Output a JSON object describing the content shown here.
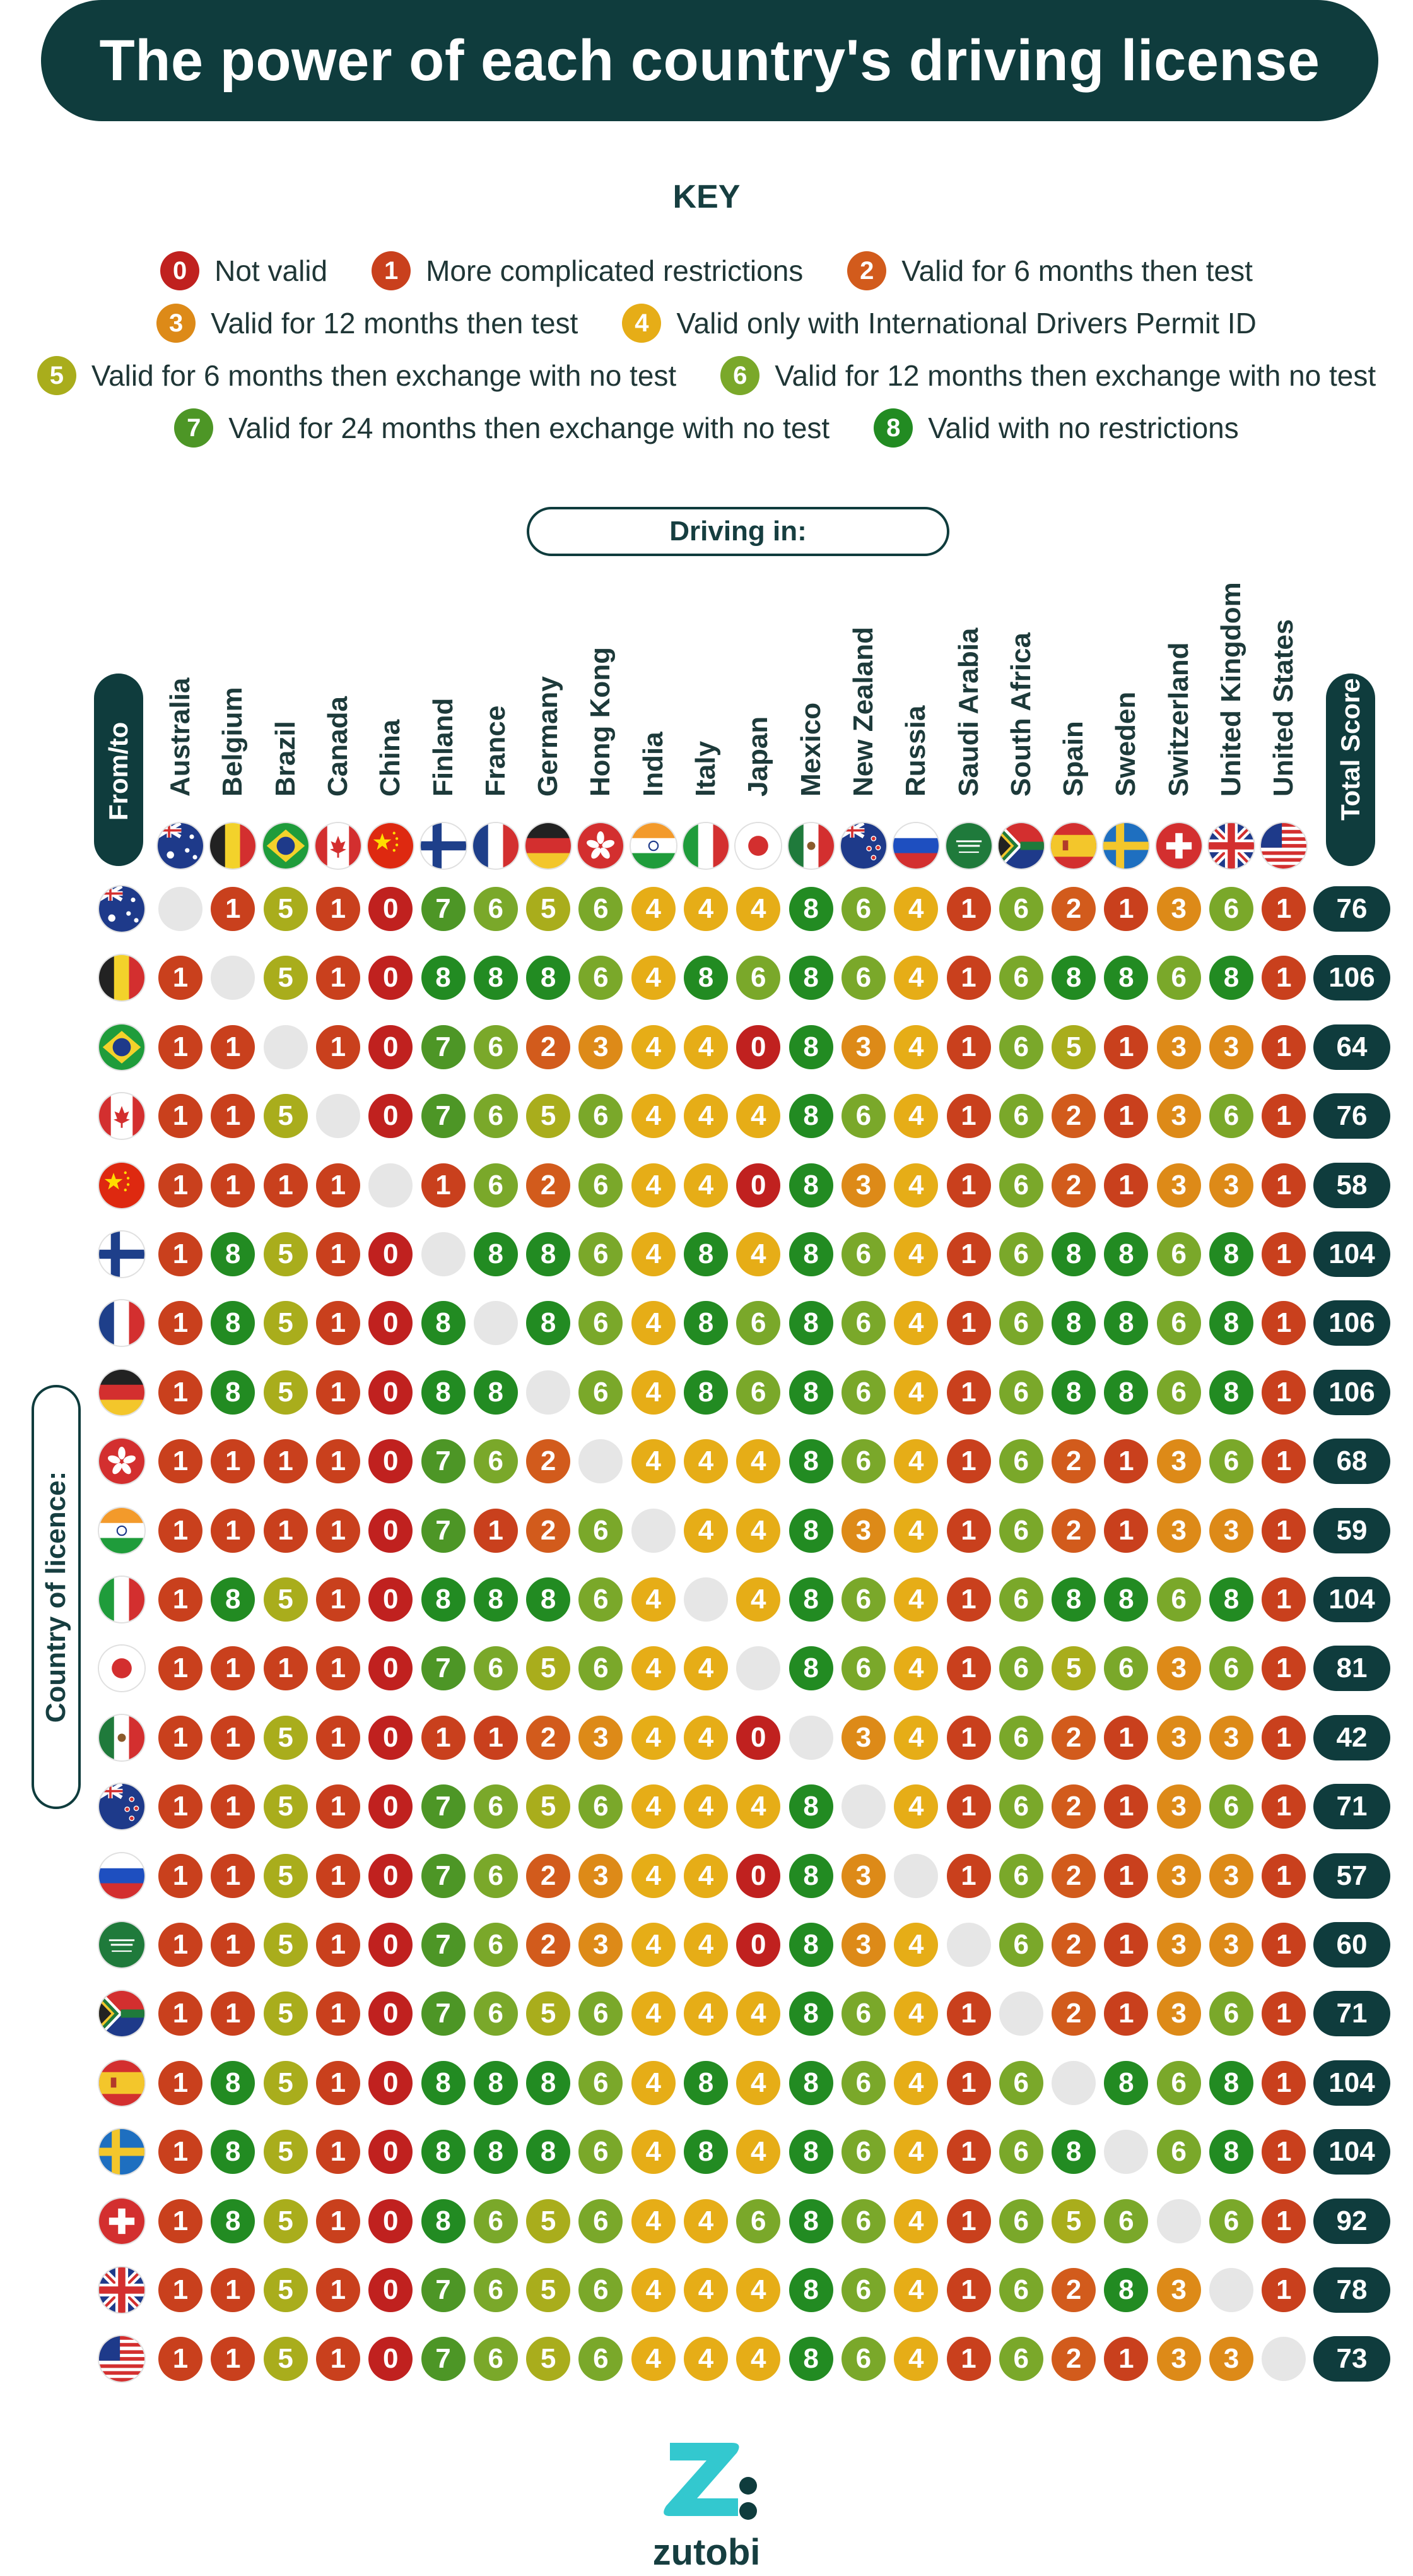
{
  "title": "The power of each country's driving license",
  "key": {
    "title": "KEY",
    "rows": [
      [
        {
          "n": "0",
          "label": "Not valid"
        },
        {
          "n": "1",
          "label": "More complicated restrictions"
        },
        {
          "n": "2",
          "label": "Valid for 6 months then test"
        }
      ],
      [
        {
          "n": "3",
          "label": "Valid for 12 months then test"
        },
        {
          "n": "4",
          "label": "Valid only with International Drivers Permit ID"
        }
      ],
      [
        {
          "n": "5",
          "label": "Valid for 6 months then exchange with no test"
        },
        {
          "n": "6",
          "label": "Valid for 12 months then exchange with no test"
        }
      ],
      [
        {
          "n": "7",
          "label": "Valid for 24 months then exchange with no test"
        },
        {
          "n": "8",
          "label": "Valid with no restrictions"
        }
      ]
    ]
  },
  "score_colors": {
    "0": "#c0211f",
    "1": "#c9401d",
    "2": "#d25b1c",
    "3": "#dd8a18",
    "4": "#e6ad17",
    "5": "#a9ad1c",
    "6": "#7aa82a",
    "7": "#4d9626",
    "8": "#228b22"
  },
  "labels": {
    "driving_in": "Driving in:",
    "from_to": "From/to",
    "total_score": "Total Score",
    "country_of_licence": "Country of licence:"
  },
  "countries": [
    "Australia",
    "Belgium",
    "Brazil",
    "Canada",
    "China",
    "Finland",
    "France",
    "Germany",
    "Hong Kong",
    "India",
    "Italy",
    "Japan",
    "Mexico",
    "New Zealand",
    "Russia",
    "Saudi Arabia",
    "South Africa",
    "Spain",
    "Sweden",
    "Switzerland",
    "United Kingdom",
    "United States"
  ],
  "flag_icons": [
    "australia-flag-icon",
    "belgium-flag-icon",
    "brazil-flag-icon",
    "canada-flag-icon",
    "china-flag-icon",
    "finland-flag-icon",
    "france-flag-icon",
    "germany-flag-icon",
    "hong-kong-flag-icon",
    "india-flag-icon",
    "italy-flag-icon",
    "japan-flag-icon",
    "mexico-flag-icon",
    "new-zealand-flag-icon",
    "russia-flag-icon",
    "saudi-arabia-flag-icon",
    "south-africa-flag-icon",
    "spain-flag-icon",
    "sweden-flag-icon",
    "switzerland-flag-icon",
    "united-kingdom-flag-icon",
    "united-states-flag-icon"
  ],
  "matrix": [
    [
      null,
      1,
      5,
      1,
      0,
      7,
      6,
      5,
      6,
      4,
      4,
      4,
      8,
      6,
      4,
      1,
      6,
      2,
      1,
      3,
      6,
      1
    ],
    [
      1,
      null,
      5,
      1,
      0,
      8,
      8,
      8,
      6,
      4,
      8,
      6,
      8,
      6,
      4,
      1,
      6,
      8,
      8,
      6,
      8,
      1
    ],
    [
      1,
      1,
      null,
      1,
      0,
      7,
      6,
      2,
      3,
      4,
      4,
      0,
      8,
      3,
      4,
      1,
      6,
      5,
      1,
      3,
      3,
      1
    ],
    [
      1,
      1,
      5,
      null,
      0,
      7,
      6,
      5,
      6,
      4,
      4,
      4,
      8,
      6,
      4,
      1,
      6,
      2,
      1,
      3,
      6,
      1
    ],
    [
      1,
      1,
      1,
      1,
      null,
      1,
      6,
      2,
      6,
      4,
      4,
      0,
      8,
      3,
      4,
      1,
      6,
      2,
      1,
      3,
      3,
      1
    ],
    [
      1,
      8,
      5,
      1,
      0,
      null,
      8,
      8,
      6,
      4,
      8,
      4,
      8,
      6,
      4,
      1,
      6,
      8,
      8,
      6,
      8,
      1
    ],
    [
      1,
      8,
      5,
      1,
      0,
      8,
      null,
      8,
      6,
      4,
      8,
      6,
      8,
      6,
      4,
      1,
      6,
      8,
      8,
      6,
      8,
      1
    ],
    [
      1,
      8,
      5,
      1,
      0,
      8,
      8,
      null,
      6,
      4,
      8,
      6,
      8,
      6,
      4,
      1,
      6,
      8,
      8,
      6,
      8,
      1
    ],
    [
      1,
      1,
      1,
      1,
      0,
      7,
      6,
      2,
      null,
      4,
      4,
      4,
      8,
      6,
      4,
      1,
      6,
      2,
      1,
      3,
      6,
      1
    ],
    [
      1,
      1,
      1,
      1,
      0,
      7,
      1,
      2,
      6,
      null,
      4,
      4,
      8,
      3,
      4,
      1,
      6,
      2,
      1,
      3,
      3,
      1
    ],
    [
      1,
      8,
      5,
      1,
      0,
      8,
      8,
      8,
      6,
      4,
      null,
      4,
      8,
      6,
      4,
      1,
      6,
      8,
      8,
      6,
      8,
      1
    ],
    [
      1,
      1,
      1,
      1,
      0,
      7,
      6,
      5,
      6,
      4,
      4,
      null,
      8,
      6,
      4,
      1,
      6,
      5,
      6,
      3,
      6,
      1
    ],
    [
      1,
      1,
      5,
      1,
      0,
      1,
      1,
      2,
      3,
      4,
      4,
      0,
      null,
      3,
      4,
      1,
      6,
      2,
      1,
      3,
      3,
      1
    ],
    [
      1,
      1,
      5,
      1,
      0,
      7,
      6,
      5,
      6,
      4,
      4,
      4,
      8,
      null,
      4,
      1,
      6,
      2,
      1,
      3,
      6,
      1
    ],
    [
      1,
      1,
      5,
      1,
      0,
      7,
      6,
      2,
      3,
      4,
      4,
      0,
      8,
      3,
      null,
      1,
      6,
      2,
      1,
      3,
      3,
      1
    ],
    [
      1,
      1,
      5,
      1,
      0,
      7,
      6,
      2,
      3,
      4,
      4,
      0,
      8,
      3,
      4,
      null,
      6,
      2,
      1,
      3,
      3,
      1
    ],
    [
      1,
      1,
      5,
      1,
      0,
      7,
      6,
      5,
      6,
      4,
      4,
      4,
      8,
      6,
      4,
      1,
      null,
      2,
      1,
      3,
      6,
      1
    ],
    [
      1,
      8,
      5,
      1,
      0,
      8,
      8,
      8,
      6,
      4,
      8,
      4,
      8,
      6,
      4,
      1,
      6,
      null,
      8,
      6,
      8,
      1
    ],
    [
      1,
      8,
      5,
      1,
      0,
      8,
      8,
      8,
      6,
      4,
      8,
      4,
      8,
      6,
      4,
      1,
      6,
      8,
      null,
      6,
      8,
      1
    ],
    [
      1,
      8,
      5,
      1,
      0,
      8,
      6,
      5,
      6,
      4,
      4,
      6,
      8,
      6,
      4,
      1,
      6,
      5,
      6,
      null,
      6,
      1
    ],
    [
      1,
      1,
      5,
      1,
      0,
      7,
      6,
      5,
      6,
      4,
      4,
      4,
      8,
      6,
      4,
      1,
      6,
      2,
      8,
      3,
      null,
      1
    ],
    [
      1,
      1,
      5,
      1,
      0,
      7,
      6,
      5,
      6,
      4,
      4,
      4,
      8,
      6,
      4,
      1,
      6,
      2,
      1,
      3,
      3,
      null
    ]
  ],
  "totals": [
    "76",
    "106",
    "64",
    "76",
    "58",
    "104",
    "106",
    "106",
    "68",
    "59",
    "104",
    "81",
    "42",
    "71",
    "57",
    "60",
    "71",
    "104",
    "104",
    "92",
    "78",
    "73"
  ],
  "logo": {
    "icon": "zutobi-z-logo-icon",
    "brand": "zutobi"
  }
}
